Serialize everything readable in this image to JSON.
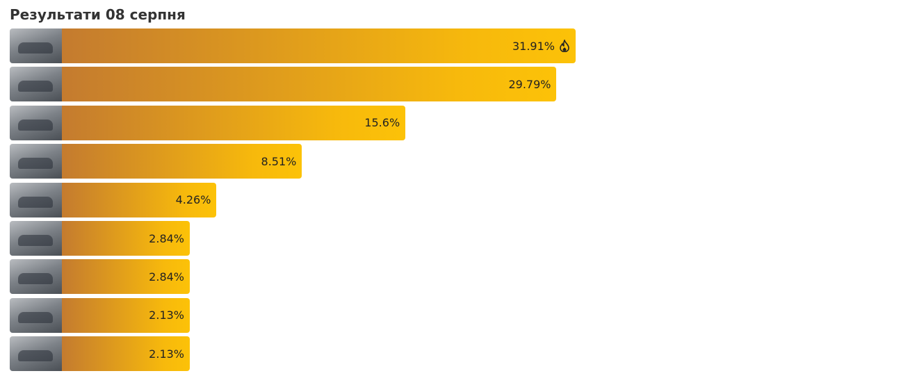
{
  "chart_data": {
    "type": "bar",
    "title": "Результати 08 серпня",
    "categories": [
      null,
      null,
      null,
      null,
      null,
      null,
      null,
      null,
      null
    ],
    "values": [
      31.91,
      29.79,
      15.6,
      8.51,
      4.26,
      2.84,
      2.84,
      2.13,
      2.13
    ],
    "value_labels": [
      "31.91%",
      "29.79%",
      "15.6%",
      "8.51%",
      "4.26%",
      "2.84%",
      "2.84%",
      "2.13%",
      "2.13%"
    ],
    "color": "#f7b90c"
  }
}
